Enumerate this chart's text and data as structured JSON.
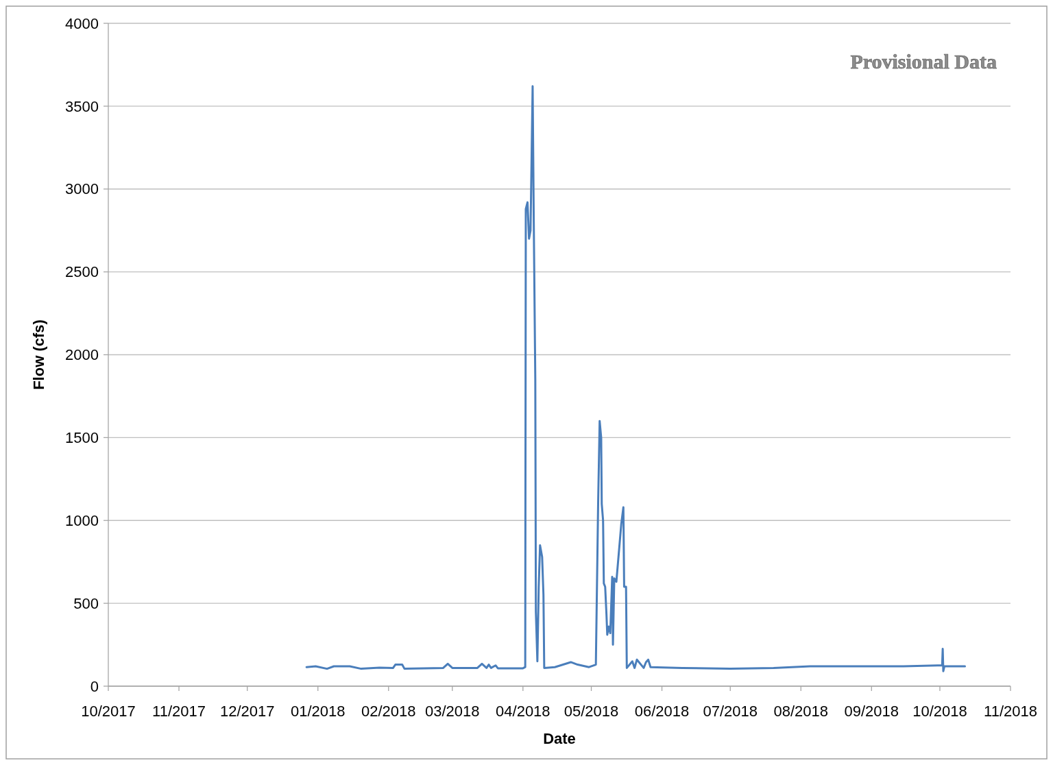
{
  "chart_data": {
    "type": "line",
    "xlabel": "Date",
    "ylabel": "Flow (cfs)",
    "annotations": [
      "Provisional Data"
    ],
    "xlim": [
      "2017-10-01",
      "2018-11-01"
    ],
    "xticks": [
      {
        "value": "2017-10-01",
        "label": "10/2017"
      },
      {
        "value": "2017-11-01",
        "label": "11/2017"
      },
      {
        "value": "2017-12-01",
        "label": "12/2017"
      },
      {
        "value": "2018-01-01",
        "label": "01/2018"
      },
      {
        "value": "2018-02-01",
        "label": "02/2018"
      },
      {
        "value": "2018-03-01",
        "label": "03/2018"
      },
      {
        "value": "2018-04-01",
        "label": "04/2018"
      },
      {
        "value": "2018-05-01",
        "label": "05/2018"
      },
      {
        "value": "2018-06-01",
        "label": "06/2018"
      },
      {
        "value": "2018-07-01",
        "label": "07/2018"
      },
      {
        "value": "2018-08-01",
        "label": "08/2018"
      },
      {
        "value": "2018-09-01",
        "label": "09/2018"
      },
      {
        "value": "2018-10-01",
        "label": "10/2018"
      },
      {
        "value": "2018-11-01",
        "label": "11/2018"
      }
    ],
    "ylim": [
      0,
      4000
    ],
    "yticks": [
      0,
      500,
      1000,
      1500,
      2000,
      2500,
      3000,
      3500,
      4000
    ],
    "grid": "y",
    "marker": "none",
    "line_style": "solid",
    "series": [
      {
        "color": "#4a7ebb",
        "x": [
          "2017-12-27",
          "2017-12-31",
          "2018-01-05",
          "2018-01-08",
          "2018-01-15",
          "2018-01-20",
          "2018-01-28",
          "2018-02-03",
          "2018-02-04",
          "2018-02-07",
          "2018-02-08",
          "2018-02-25",
          "2018-02-27",
          "2018-03-01",
          "2018-03-12",
          "2018-03-14",
          "2018-03-16",
          "2018-03-17",
          "2018-03-18",
          "2018-03-20",
          "2018-03-21",
          "2018-04-01",
          "2018-04-02T00:00",
          "2018-04-02T06:00",
          "2018-04-03T00:00",
          "2018-04-03T16:00",
          "2018-04-04T08:00",
          "2018-04-05T06:00",
          "2018-04-05T18:00",
          "2018-04-06T10:00",
          "2018-04-06T16:00",
          "2018-04-07T08:00",
          "2018-04-07T22:00",
          "2018-04-08T12:00",
          "2018-04-09T10:00",
          "2018-04-10T00:00",
          "2018-04-10T08:00",
          "2018-04-15",
          "2018-04-22",
          "2018-04-25",
          "2018-04-30",
          "2018-05-03T00:00",
          "2018-05-04T00:00",
          "2018-05-04T16:00",
          "2018-05-05T08:00",
          "2018-05-05T14:00",
          "2018-05-06T04:00",
          "2018-05-06T12:00",
          "2018-05-07T02:00",
          "2018-05-07T16:00",
          "2018-05-08T00:00",
          "2018-05-08T16:00",
          "2018-05-09T08:00",
          "2018-05-10T04:00",
          "2018-05-10T12:00",
          "2018-05-11T02:00",
          "2018-05-12T00:00",
          "2018-05-14T04:00",
          "2018-05-15T02:00",
          "2018-05-15T10:00",
          "2018-05-16T06:00",
          "2018-05-16T14:00",
          "2018-05-19",
          "2018-05-20",
          "2018-05-21",
          "2018-05-24",
          "2018-05-25",
          "2018-05-26",
          "2018-05-27",
          "2018-06-10",
          "2018-07-01",
          "2018-07-20",
          "2018-08-05",
          "2018-08-25",
          "2018-09-15",
          "2018-09-30",
          "2018-10-02T00:00",
          "2018-10-02T06:00",
          "2018-10-02T12:00",
          "2018-10-03",
          "2018-10-12"
        ],
        "values": [
          115,
          120,
          105,
          120,
          120,
          105,
          112,
          110,
          130,
          130,
          105,
          110,
          135,
          110,
          110,
          135,
          110,
          130,
          110,
          125,
          108,
          108,
          115,
          2880,
          2920,
          2700,
          2750,
          3620,
          2800,
          1850,
          450,
          150,
          600,
          850,
          780,
          550,
          110,
          115,
          145,
          130,
          115,
          130,
          1100,
          1600,
          1500,
          1100,
          1000,
          620,
          600,
          430,
          310,
          360,
          320,
          660,
          250,
          650,
          630,
          980,
          1080,
          600,
          600,
          110,
          150,
          110,
          160,
          110,
          145,
          160,
          115,
          110,
          105,
          110,
          120,
          120,
          120,
          125,
          125,
          225,
          90,
          120,
          120
        ]
      }
    ]
  }
}
